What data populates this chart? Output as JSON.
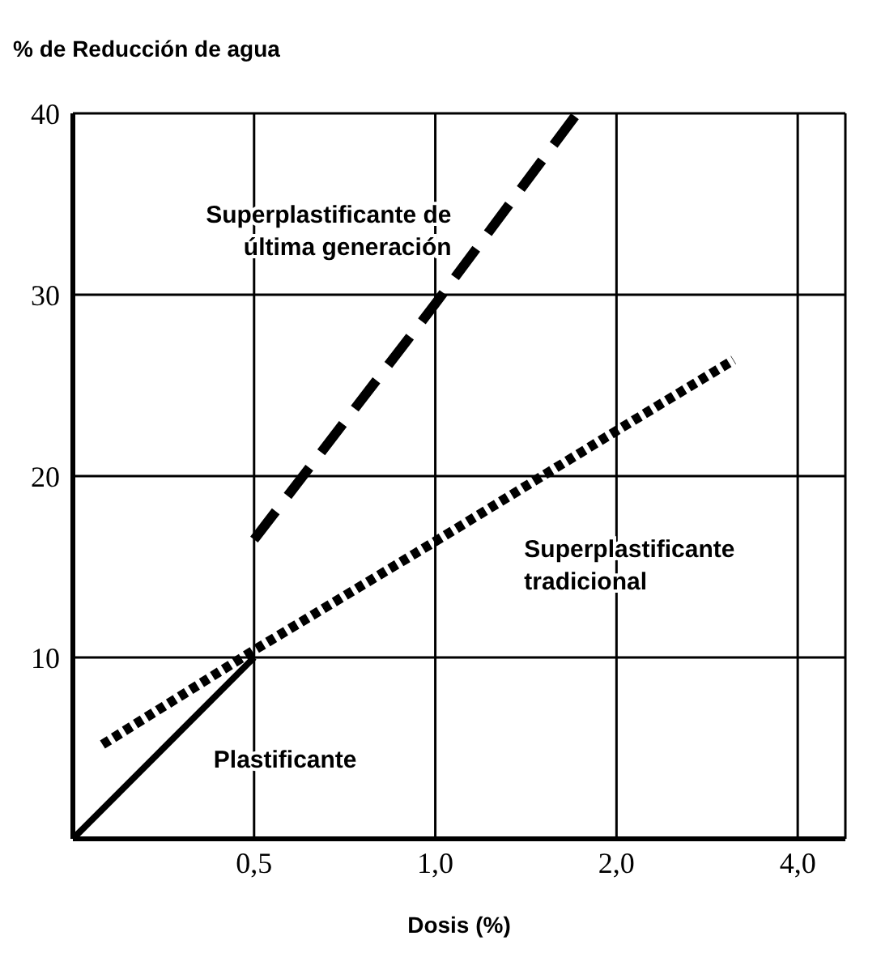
{
  "chart_data": {
    "type": "line",
    "ylabel": "% de Reducción de agua",
    "xlabel": "Dosis (%)",
    "xlim": [
      0.25,
      4.8
    ],
    "xticks": [
      {
        "value": 0.5,
        "label": "0,5"
      },
      {
        "value": 1,
        "label": "1,0"
      },
      {
        "value": 2,
        "label": "2,0"
      },
      {
        "value": 4,
        "label": "4,0"
      }
    ],
    "ylim": [
      0,
      40
    ],
    "yticks": [
      10,
      20,
      30,
      40
    ],
    "log": "x",
    "grid": true,
    "legend": false,
    "marker": "none",
    "series": [
      {
        "name": "Superplastificante de última generación",
        "color": "#000000",
        "line_style": "dashed",
        "x": [
          0.5,
          1,
          1.72
        ],
        "values": [
          16.5,
          29.5,
          40
        ]
      },
      {
        "name": "Superplastificante tradicional",
        "color": "#000000",
        "line_style": "dotted",
        "x": [
          0.28,
          0.5,
          1,
          2,
          3.13
        ],
        "values": [
          5.2,
          10.4,
          16.4,
          22.5,
          26.4
        ]
      },
      {
        "name": "Plastificante",
        "color": "#000000",
        "line_style": "solid",
        "x": [
          0.25,
          0.5
        ],
        "values": [
          0,
          10
        ]
      }
    ]
  }
}
